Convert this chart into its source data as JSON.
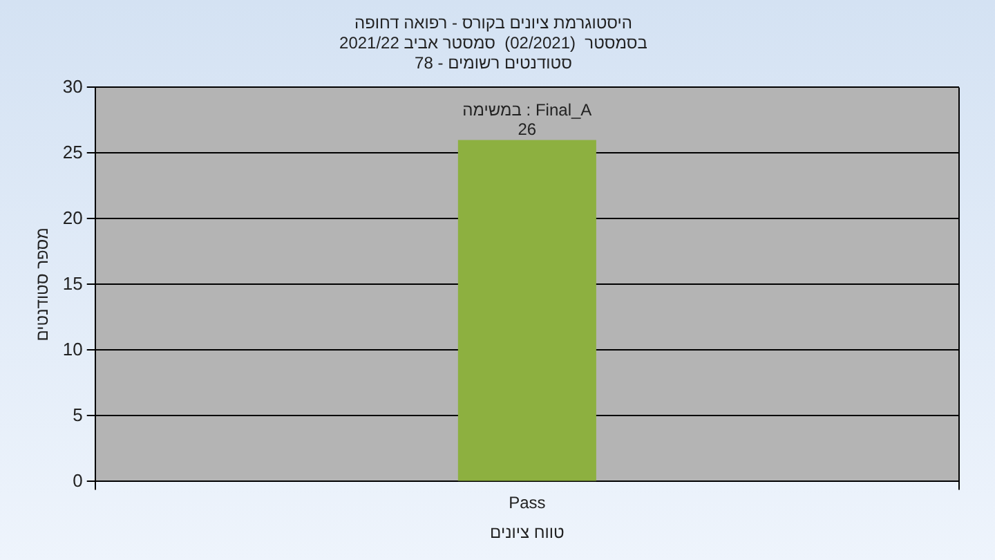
{
  "chart_data": {
    "type": "bar",
    "title": "היסטוגרמת ציונים בקורס - רפואה דחופה",
    "subtitle": "בסמסטר  (02/2021)  סמסטר אביב 2021/22\nסטודנטים רשומים - 78",
    "xlabel": "טווח ציונים",
    "ylabel": "מספר סטודנטים",
    "categories": [
      "Pass"
    ],
    "series": [
      {
        "color": "#8db040",
        "values": [
          26
        ]
      }
    ],
    "ylim": [
      0,
      30
    ],
    "yticks": [
      0,
      5,
      10,
      15,
      20,
      25,
      30
    ],
    "grid": true,
    "legend": false,
    "data_labels": true,
    "annotations": [
      "במשימה : Final_A"
    ]
  }
}
